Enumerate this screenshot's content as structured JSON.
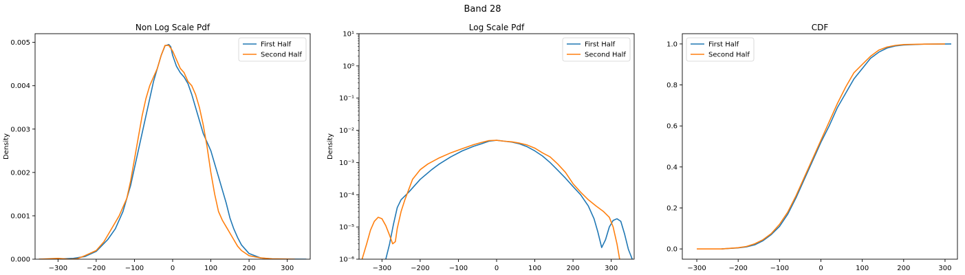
{
  "figure": {
    "suptitle": "Band 28"
  },
  "colors": {
    "series_1": "#1f77b4",
    "series_2": "#ff7f0e"
  },
  "chart_data": [
    {
      "type": "line",
      "title": "Non Log Scale Pdf",
      "xlabel": "",
      "ylabel": "Density",
      "xlim": [
        -360,
        360
      ],
      "ylim": [
        0,
        0.0052
      ],
      "yscale": "linear",
      "xticks": [
        -300,
        -200,
        -100,
        0,
        100,
        200,
        300
      ],
      "xtick_labels": [
        "−300",
        "−200",
        "−100",
        "0",
        "100",
        "200",
        "300"
      ],
      "yticks": [
        0,
        0.001,
        0.002,
        0.003,
        0.004,
        0.005
      ],
      "ytick_labels": [
        "0.000",
        "0.001",
        "0.002",
        "0.003",
        "0.004",
        "0.005"
      ],
      "legend": "top-right",
      "series": [
        {
          "name": "First Half",
          "x": [
            -350,
            -300,
            -260,
            -230,
            -200,
            -170,
            -150,
            -130,
            -110,
            -100,
            -90,
            -80,
            -70,
            -60,
            -50,
            -40,
            -30,
            -20,
            -10,
            -5,
            0,
            10,
            20,
            30,
            40,
            50,
            60,
            70,
            80,
            90,
            100,
            110,
            120,
            130,
            140,
            150,
            160,
            170,
            180,
            200,
            230,
            260,
            300,
            350
          ],
          "y": [
            0.0,
            3e-06,
            2e-05,
            6e-05,
            0.00018,
            0.00045,
            0.0007,
            0.0011,
            0.0017,
            0.0021,
            0.0025,
            0.0029,
            0.0033,
            0.0037,
            0.0041,
            0.0044,
            0.0047,
            0.00492,
            0.00495,
            0.0049,
            0.0047,
            0.00445,
            0.0043,
            0.0042,
            0.00405,
            0.0038,
            0.0035,
            0.0032,
            0.0029,
            0.0027,
            0.0025,
            0.0022,
            0.0019,
            0.0016,
            0.0013,
            0.00095,
            0.0007,
            0.0005,
            0.00033,
            0.00013,
            3e-05,
            5e-06,
            2e-06,
            0.0
          ]
        },
        {
          "name": "Second Half",
          "x": [
            -350,
            -300,
            -270,
            -250,
            -230,
            -200,
            -180,
            -160,
            -140,
            -120,
            -110,
            -100,
            -90,
            -80,
            -70,
            -60,
            -50,
            -40,
            -30,
            -20,
            -10,
            0,
            10,
            20,
            30,
            40,
            50,
            60,
            70,
            80,
            90,
            100,
            110,
            120,
            130,
            140,
            150,
            160,
            170,
            180,
            200,
            230,
            260,
            300,
            320
          ],
          "y": [
            0.0,
            2e-05,
            0.0,
            1e-05,
            8e-05,
            0.0002,
            0.0004,
            0.0007,
            0.001,
            0.0014,
            0.0018,
            0.0023,
            0.0028,
            0.0033,
            0.0037,
            0.004,
            0.0042,
            0.0044,
            0.0047,
            0.00493,
            0.00493,
            0.0048,
            0.0046,
            0.0044,
            0.0043,
            0.0041,
            0.004,
            0.0038,
            0.0035,
            0.0031,
            0.0026,
            0.002,
            0.0015,
            0.0011,
            0.0009,
            0.00075,
            0.0006,
            0.00045,
            0.0003,
            0.0002,
            8e-05,
            3e-05,
            1e-05,
            3e-06,
            0.0
          ]
        }
      ]
    },
    {
      "type": "line",
      "title": "Log Scale Pdf",
      "xlabel": "",
      "ylabel": "Density",
      "xlim": [
        -360,
        360
      ],
      "ylim": [
        1e-06,
        10
      ],
      "yscale": "log",
      "xticks": [
        -300,
        -200,
        -100,
        0,
        100,
        200,
        300
      ],
      "xtick_labels": [
        "−300",
        "−200",
        "−100",
        "0",
        "100",
        "200",
        "300"
      ],
      "yticks": [
        1e-06,
        1e-05,
        0.0001,
        0.001,
        0.01,
        0.1,
        1,
        10
      ],
      "ytick_labels": [
        "10⁻⁶",
        "10⁻⁵",
        "10⁻⁴",
        "10⁻³",
        "10⁻²",
        "10⁻¹",
        "10⁰",
        "10¹"
      ],
      "legend": "top-right",
      "series": [
        {
          "name": "First Half",
          "x": [
            -290,
            -280,
            -270,
            -260,
            -250,
            -230,
            -200,
            -170,
            -150,
            -120,
            -90,
            -60,
            -40,
            -20,
            0,
            20,
            40,
            60,
            80,
            100,
            120,
            140,
            160,
            180,
            200,
            220,
            240,
            255,
            265,
            275,
            285,
            295,
            305,
            315,
            325,
            335,
            345,
            355
          ],
          "y": [
            1e-06,
            3e-06,
            1.2e-05,
            4e-05,
            7e-05,
            0.00012,
            0.0003,
            0.0006,
            0.0009,
            0.0015,
            0.0023,
            0.0032,
            0.0038,
            0.0046,
            0.0049,
            0.0046,
            0.0043,
            0.0038,
            0.0031,
            0.0023,
            0.0016,
            0.001,
            0.00058,
            0.00033,
            0.00018,
            0.0001,
            4.5e-05,
            1.8e-05,
            7e-06,
            2.3e-06,
            4e-06,
            1e-05,
            1.6e-05,
            1.8e-05,
            1.5e-05,
            6e-06,
            2e-06,
            1e-06
          ]
        },
        {
          "name": "Second Half",
          "x": [
            -352,
            -340,
            -330,
            -320,
            -310,
            -300,
            -290,
            -280,
            -272,
            -265,
            -260,
            -250,
            -240,
            -220,
            -200,
            -180,
            -150,
            -120,
            -90,
            -60,
            -40,
            -20,
            0,
            20,
            40,
            60,
            80,
            100,
            120,
            140,
            160,
            180,
            200,
            220,
            240,
            260,
            280,
            295,
            305,
            315,
            322
          ],
          "y": [
            1e-06,
            3e-06,
            8e-06,
            1.5e-05,
            2e-05,
            1.8e-05,
            1.1e-05,
            5.5e-06,
            3e-06,
            3.5e-06,
            9e-06,
            3e-05,
            7e-05,
            0.0003,
            0.0006,
            0.0009,
            0.0014,
            0.002,
            0.0027,
            0.0036,
            0.0042,
            0.0048,
            0.0049,
            0.0046,
            0.0044,
            0.004,
            0.0035,
            0.0028,
            0.002,
            0.0015,
            0.0009,
            0.0005,
            0.00022,
            0.00012,
            7e-05,
            4.5e-05,
            3e-05,
            2e-05,
            1e-05,
            3e-06,
            1e-06
          ]
        }
      ]
    },
    {
      "type": "line",
      "title": "CDF",
      "xlabel": "",
      "ylabel": "",
      "xlim": [
        -335,
        330
      ],
      "ylim": [
        -0.05,
        1.05
      ],
      "yscale": "linear",
      "xticks": [
        -300,
        -200,
        -100,
        0,
        100,
        200,
        300
      ],
      "xtick_labels": [
        "−300",
        "−200",
        "−100",
        "0",
        "100",
        "200",
        "300"
      ],
      "yticks": [
        0,
        0.2,
        0.4,
        0.6,
        0.8,
        1.0
      ],
      "ytick_labels": [
        "0.0",
        "0.2",
        "0.4",
        "0.6",
        "0.8",
        "1.0"
      ],
      "legend": "top-left",
      "series": [
        {
          "name": "First Half",
          "x": [
            -240,
            -200,
            -180,
            -160,
            -140,
            -120,
            -100,
            -80,
            -60,
            -40,
            -20,
            0,
            20,
            40,
            60,
            80,
            100,
            120,
            140,
            160,
            180,
            200,
            250,
            315
          ],
          "y": [
            0.0,
            0.005,
            0.01,
            0.02,
            0.04,
            0.07,
            0.11,
            0.17,
            0.25,
            0.34,
            0.43,
            0.52,
            0.6,
            0.69,
            0.76,
            0.83,
            0.88,
            0.93,
            0.96,
            0.98,
            0.99,
            0.995,
            0.999,
            1.0
          ]
        },
        {
          "name": "Second Half",
          "x": [
            -300,
            -240,
            -200,
            -180,
            -160,
            -140,
            -120,
            -100,
            -80,
            -60,
            -40,
            -20,
            0,
            20,
            40,
            60,
            80,
            100,
            120,
            140,
            160,
            180,
            200,
            250,
            300
          ],
          "y": [
            0.0,
            0.0,
            0.006,
            0.012,
            0.025,
            0.045,
            0.075,
            0.12,
            0.18,
            0.26,
            0.35,
            0.44,
            0.53,
            0.62,
            0.71,
            0.79,
            0.86,
            0.9,
            0.94,
            0.97,
            0.985,
            0.993,
            0.997,
            0.999,
            1.0
          ]
        }
      ]
    }
  ]
}
